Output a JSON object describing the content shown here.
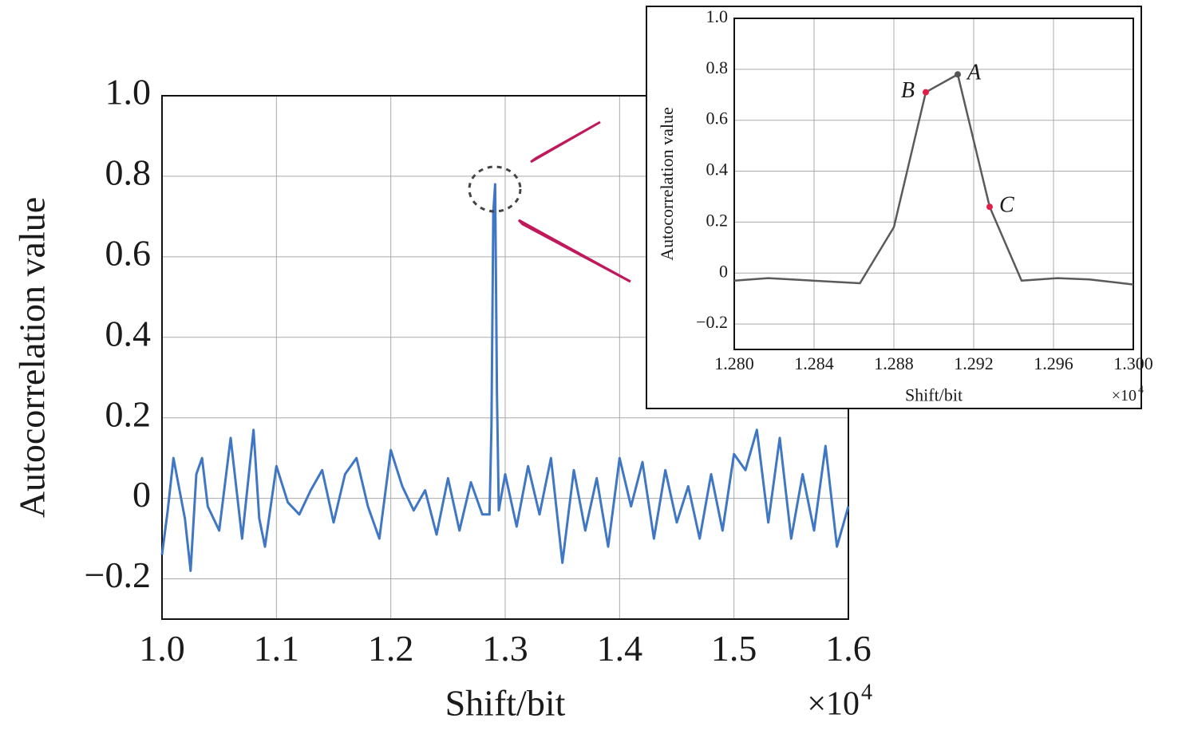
{
  "chart_data": [
    {
      "type": "line",
      "x_label": "Shift/bit",
      "y_label": "Autocorrelation value",
      "x_multiplier": "×10",
      "x_multiplier_exponent": "4",
      "xlim": [
        1.0,
        1.6
      ],
      "ylim": [
        -0.3,
        1.0
      ],
      "grid": true,
      "xticks": [
        {
          "value": 1.0,
          "label": "1.0"
        },
        1.1,
        1.2,
        1.3,
        1.4,
        1.5,
        1.6
      ],
      "yticks": [
        {
          "value": -0.2,
          "label": "−0.2"
        },
        0,
        0.2,
        0.4,
        0.6,
        0.8,
        {
          "value": 1.0,
          "label": "1.0"
        }
      ],
      "x": [
        1.0,
        1.005,
        1.01,
        1.02,
        1.025,
        1.03,
        1.035,
        1.04,
        1.05,
        1.06,
        1.07,
        1.08,
        1.085,
        1.09,
        1.1,
        1.11,
        1.12,
        1.13,
        1.14,
        1.15,
        1.16,
        1.17,
        1.18,
        1.19,
        1.2,
        1.21,
        1.22,
        1.23,
        1.24,
        1.25,
        1.26,
        1.27,
        1.28,
        1.2863,
        1.288,
        1.2896,
        1.2912,
        1.2928,
        1.2944,
        1.3,
        1.31,
        1.32,
        1.33,
        1.34,
        1.35,
        1.36,
        1.37,
        1.38,
        1.39,
        1.4,
        1.41,
        1.42,
        1.43,
        1.44,
        1.45,
        1.46,
        1.47,
        1.48,
        1.49,
        1.5,
        1.51,
        1.52,
        1.53,
        1.54,
        1.55,
        1.56,
        1.57,
        1.58,
        1.59,
        1.6
      ],
      "series": [
        {
          "color": "#3f77c4",
          "values": [
            -0.14,
            -0.03,
            0.1,
            -0.05,
            -0.18,
            0.06,
            0.1,
            -0.02,
            -0.08,
            0.15,
            -0.1,
            0.17,
            -0.05,
            -0.12,
            0.08,
            -0.01,
            -0.04,
            0.02,
            0.07,
            -0.06,
            0.06,
            0.1,
            -0.02,
            -0.1,
            0.12,
            0.03,
            -0.03,
            0.02,
            -0.09,
            0.05,
            -0.08,
            0.04,
            -0.04,
            -0.04,
            0.18,
            0.71,
            0.78,
            0.26,
            -0.03,
            0.06,
            -0.07,
            0.08,
            -0.04,
            0.1,
            -0.16,
            0.07,
            -0.08,
            0.05,
            -0.12,
            0.1,
            -0.02,
            0.09,
            -0.1,
            0.07,
            -0.06,
            0.03,
            -0.1,
            0.06,
            -0.08,
            0.11,
            0.07,
            0.17,
            -0.06,
            0.15,
            -0.1,
            0.06,
            -0.08,
            0.13,
            -0.12,
            -0.02
          ]
        }
      ]
    },
    {
      "type": "line",
      "x_label": "Shift/bit",
      "y_label": "Autocorrelation value",
      "x_multiplier": "×10",
      "x_multiplier_exponent": "4",
      "xlim": [
        1.28,
        1.3
      ],
      "ylim": [
        -0.3,
        1.0
      ],
      "grid": true,
      "xticks": [
        {
          "value": 1.28,
          "label": "1.280"
        },
        1.284,
        1.288,
        1.292,
        1.296,
        {
          "value": 1.3,
          "label": "1.300"
        }
      ],
      "yticks": [
        {
          "value": -0.2,
          "label": "−0.2"
        },
        0,
        0.2,
        0.4,
        0.6,
        0.8,
        {
          "value": 1.0,
          "label": "1.0"
        }
      ],
      "x": [
        1.28,
        1.2817,
        1.2863,
        1.288,
        1.2896,
        1.2912,
        1.2928,
        1.2944,
        1.2962,
        1.2978,
        1.3
      ],
      "series": [
        {
          "color": "#5a5a5a",
          "values": [
            -0.03,
            -0.02,
            -0.04,
            0.18,
            0.71,
            0.78,
            0.26,
            -0.03,
            -0.02,
            -0.025,
            -0.045
          ]
        }
      ],
      "points": [
        {
          "label": "A",
          "x": 1.2912,
          "y": 0.78,
          "color": "#555555"
        },
        {
          "label": "B",
          "x": 1.2896,
          "y": 0.71,
          "color": "#e0204a"
        },
        {
          "label": "C",
          "x": 1.2928,
          "y": 0.26,
          "color": "#e0204a"
        }
      ]
    }
  ]
}
